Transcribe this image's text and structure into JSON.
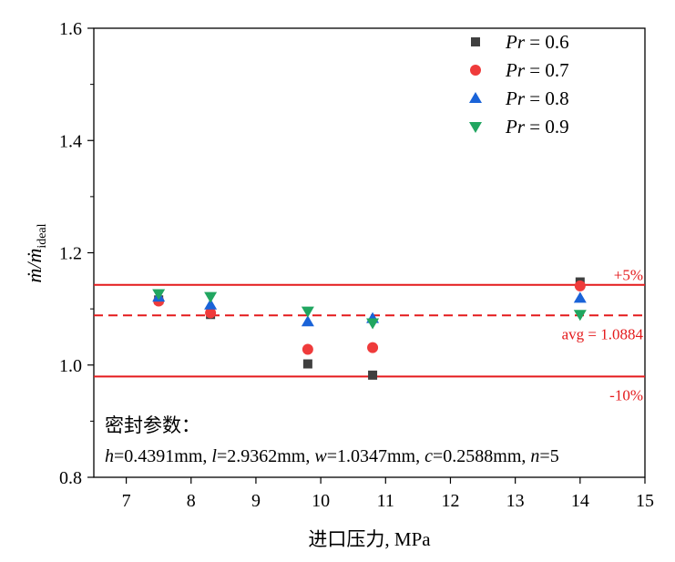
{
  "chart_data": {
    "type": "scatter",
    "title": "",
    "xlabel": "进口压力, MPa",
    "ylabel": {
      "main": "ṁ/ṁ",
      "subscript": "ideal"
    },
    "xlim": [
      6.5,
      15
    ],
    "ylim": [
      0.8,
      1.6
    ],
    "xticks": [
      7,
      8,
      9,
      10,
      11,
      12,
      13,
      14,
      15
    ],
    "yticks": [
      0.8,
      1.0,
      1.2,
      1.4,
      1.6
    ],
    "x_tick_labels": [
      "7",
      "8",
      "9",
      "10",
      "11",
      "12",
      "13",
      "14",
      "15"
    ],
    "y_tick_labels": [
      "0.8",
      "1.0",
      "1.2",
      "1.4",
      "1.6"
    ],
    "legend_position": "top-right",
    "series": [
      {
        "name": "Pr = 0.6",
        "legend_italic": "Pr",
        "legend_rest": " = 0.6",
        "marker": "square",
        "color": "#3f3f3f",
        "x": [
          7.5,
          8.3,
          9.8,
          10.8,
          14
        ],
        "y": [
          1.116,
          1.09,
          1.002,
          0.982,
          1.148
        ]
      },
      {
        "name": "Pr = 0.7",
        "legend_italic": "Pr",
        "legend_rest": " = 0.7",
        "marker": "circle",
        "color": "#ef3b3b",
        "x": [
          7.5,
          8.3,
          9.8,
          10.8,
          14
        ],
        "y": [
          1.114,
          1.093,
          1.028,
          1.031,
          1.141
        ]
      },
      {
        "name": "Pr = 0.8",
        "legend_italic": "Pr",
        "legend_rest": " = 0.8",
        "marker": "triangle-up",
        "color": "#1a63d8",
        "x": [
          7.5,
          8.3,
          9.8,
          10.8,
          14
        ],
        "y": [
          1.121,
          1.107,
          1.077,
          1.083,
          1.119
        ]
      },
      {
        "name": "Pr = 0.9",
        "legend_italic": "Pr",
        "legend_rest": " = 0.9",
        "marker": "triangle-down",
        "color": "#21a660",
        "x": [
          7.5,
          8.3,
          9.8,
          10.8,
          14
        ],
        "y": [
          1.127,
          1.122,
          1.096,
          1.075,
          1.09
        ]
      }
    ],
    "reference_lines": [
      {
        "name": "+5%",
        "label": "+5%",
        "y": 1.1428,
        "style": "solid",
        "color": "#e41a1c"
      },
      {
        "name": "avg",
        "label": "avg = 1.0884",
        "y": 1.0884,
        "style": "dashed",
        "color": "#e41a1c"
      },
      {
        "name": "-10%",
        "label": "-10%",
        "y": 0.9796,
        "style": "solid",
        "color": "#e41a1c"
      }
    ],
    "annotations": {
      "seal_title": "密封参数：",
      "seal_params": [
        {
          "var": "h",
          "value": "=0.4391mm, "
        },
        {
          "var": "l",
          "value": "=2.9362mm, "
        },
        {
          "var": "w",
          "value": "=1.0347mm, "
        },
        {
          "var": "c",
          "value": "=0.2588mm, "
        },
        {
          "var": "n",
          "value": "=5"
        }
      ]
    }
  }
}
